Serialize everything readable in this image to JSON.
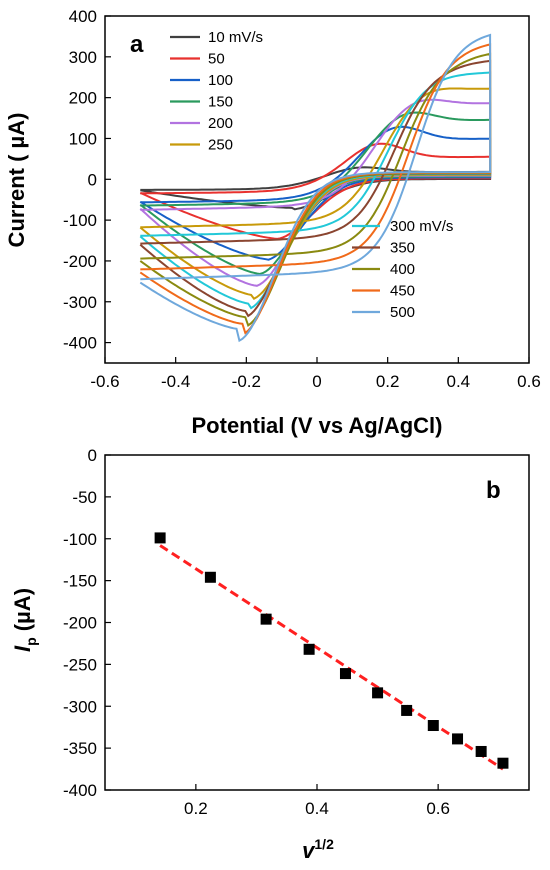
{
  "chart_data": [
    {
      "panel": "a",
      "type": "line",
      "xlabel": "Potential (V vs Ag/AgCl)",
      "ylabel": "Current ( µA)",
      "xlim": [
        -0.6,
        0.6
      ],
      "ylim": [
        -450,
        400
      ],
      "xticks": [
        "-0.6",
        "-0.4",
        "-0.2",
        "0",
        "0.2",
        "0.4",
        "0.6"
      ],
      "yticks": [
        "400",
        "300",
        "200",
        "100",
        "0",
        "-100",
        "-200",
        "-300",
        "-400"
      ],
      "legend_left": [
        "10 mV/s",
        "50",
        "100",
        "150",
        "200",
        "250"
      ],
      "legend_right": [
        "300 mV/s",
        "350",
        "400",
        "450",
        "500"
      ],
      "series": [
        {
          "name": "10 mV/s",
          "color": "#404040",
          "ipa": 35,
          "ipc": -70,
          "epa": 0.12,
          "epc": -0.07,
          "tail_a": 17,
          "tail_c": -27
        },
        {
          "name": "50",
          "color": "#e8312e",
          "ipa": 100,
          "ipc": -146,
          "epa": 0.17,
          "epc": -0.11,
          "tail_a": 52,
          "tail_c": -33
        },
        {
          "name": "100",
          "color": "#1660c8",
          "ipa": 145,
          "ipc": -196,
          "epa": 0.22,
          "epc": -0.14,
          "tail_a": 95,
          "tail_c": -55
        },
        {
          "name": "150",
          "color": "#2a9a5e",
          "ipa": 180,
          "ipc": -232,
          "epa": 0.25,
          "epc": -0.16,
          "tail_a": 140,
          "tail_c": -62
        },
        {
          "name": "200",
          "color": "#b273e0",
          "ipa": 210,
          "ipc": -261,
          "epa": 0.28,
          "epc": -0.17,
          "tail_a": 180,
          "tail_c": -72
        },
        {
          "name": "250",
          "color": "#c89a0a",
          "ipa": 235,
          "ipc": -284,
          "epa": 0.31,
          "epc": -0.18,
          "tail_a": 215,
          "tail_c": -118
        },
        {
          "name": "300 mV/s",
          "color": "#22c8d8",
          "ipa": 260,
          "ipc": -305,
          "epa": 0.33,
          "epc": -0.19,
          "tail_a": 255,
          "tail_c": -140
        },
        {
          "name": "350",
          "color": "#8a4530",
          "ipa": 280,
          "ipc": -323,
          "epa": 0.35,
          "epc": -0.2,
          "tail_a": 285,
          "tail_c": -160
        },
        {
          "name": "400",
          "color": "#8a8a10",
          "ipa": 295,
          "ipc": -338,
          "epa": 0.37,
          "epc": -0.2,
          "tail_a": 305,
          "tail_c": -200
        },
        {
          "name": "450",
          "color": "#f06a1a",
          "ipa": 325,
          "ipc": -354,
          "epa": 0.39,
          "epc": -0.21,
          "tail_a": 330,
          "tail_c": -228
        },
        {
          "name": "500",
          "color": "#6fa8dc",
          "ipa": 355,
          "ipc": -367,
          "epa": 0.41,
          "epc": -0.22,
          "tail_a": 355,
          "tail_c": -253
        }
      ]
    },
    {
      "panel": "b",
      "type": "scatter",
      "xlabel": "v",
      "xlabel_sup": "1/2",
      "ylabel": "I",
      "ylabel_sub": "p",
      "ylabel_unit": " (µA)",
      "xlim": [
        0.05,
        0.75
      ],
      "ylim": [
        -400,
        0
      ],
      "xticks": [
        "0.2",
        "0.4",
        "0.6"
      ],
      "yticks": [
        "0",
        "-50",
        "-100",
        "-150",
        "-200",
        "-250",
        "-300",
        "-350",
        "-400"
      ],
      "x": [
        0.141,
        0.224,
        0.316,
        0.387,
        0.447,
        0.5,
        0.548,
        0.592,
        0.632,
        0.671,
        0.707
      ],
      "y": [
        -99,
        -146,
        -196,
        -232,
        -261,
        -284,
        -305,
        -323,
        -339,
        -354,
        -368
      ],
      "fit": {
        "x": [
          0.141,
          0.707
        ],
        "y": [
          -108,
          -375
        ],
        "color": "#ff2020",
        "style": "dashed"
      }
    }
  ]
}
